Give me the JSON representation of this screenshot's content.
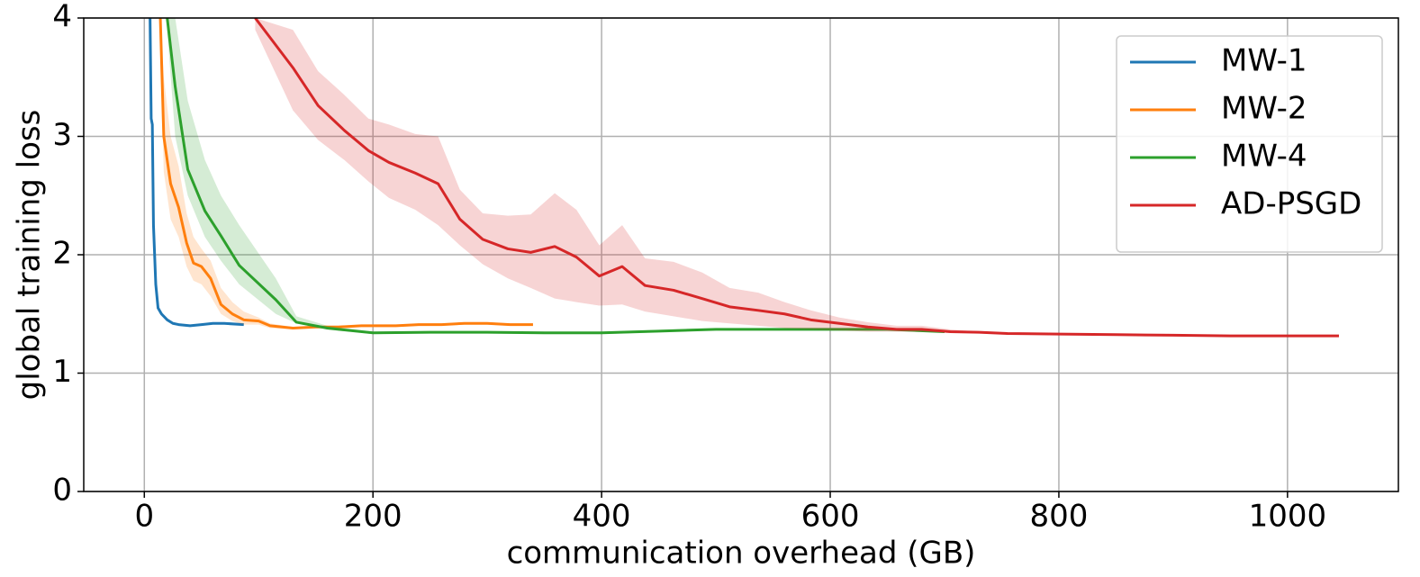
{
  "chart_data": {
    "type": "line",
    "x_label": "communication overhead (GB)",
    "y_label": "global training loss",
    "xlim": [
      -53,
      1097
    ],
    "ylim": [
      0,
      4
    ],
    "xticks": [
      0,
      200,
      400,
      600,
      800,
      1000
    ],
    "yticks": [
      0,
      1,
      2,
      3,
      4
    ],
    "grid": true,
    "legend": "upper right",
    "series": [
      {
        "name": "MW-1",
        "color": "#1f77b4",
        "x": [
          5,
          6,
          7,
          8,
          10,
          12,
          15,
          20,
          25,
          30,
          40,
          50,
          60,
          70,
          87
        ],
        "y": [
          4.0,
          3.15,
          3.1,
          2.25,
          1.75,
          1.55,
          1.5,
          1.45,
          1.42,
          1.41,
          1.4,
          1.41,
          1.42,
          1.42,
          1.41
        ]
      },
      {
        "name": "MW-2",
        "color": "#ff7f0e",
        "x": [
          14,
          17,
          23,
          30,
          37,
          43,
          50,
          58,
          67,
          77,
          87,
          100,
          110,
          130,
          150,
          170,
          190,
          220,
          240,
          260,
          280,
          300,
          320,
          340
        ],
        "y": [
          4.0,
          3.0,
          2.6,
          2.4,
          2.1,
          1.93,
          1.9,
          1.8,
          1.58,
          1.5,
          1.45,
          1.44,
          1.4,
          1.38,
          1.39,
          1.39,
          1.4,
          1.4,
          1.41,
          1.41,
          1.42,
          1.42,
          1.41,
          1.41
        ],
        "upper": [
          4.0,
          3.5,
          3.0,
          2.75,
          2.35,
          2.15,
          2.05,
          1.95,
          1.72,
          1.6,
          1.52,
          1.47,
          1.42,
          1.39,
          1.4,
          1.4,
          1.41,
          1.41,
          1.42,
          1.42,
          1.43,
          1.43,
          1.42,
          1.42
        ],
        "lower": [
          3.9,
          2.7,
          2.3,
          2.15,
          1.9,
          1.78,
          1.75,
          1.65,
          1.5,
          1.44,
          1.41,
          1.41,
          1.38,
          1.37,
          1.38,
          1.38,
          1.39,
          1.39,
          1.4,
          1.4,
          1.41,
          1.41,
          1.4,
          1.4
        ]
      },
      {
        "name": "MW-4",
        "color": "#2ca02c",
        "x": [
          20,
          27,
          38,
          53,
          67,
          83,
          115,
          133,
          160,
          200,
          250,
          300,
          350,
          400,
          450,
          500,
          550,
          600,
          650,
          700
        ],
        "y": [
          4.0,
          3.42,
          2.72,
          2.37,
          2.16,
          1.91,
          1.62,
          1.43,
          1.38,
          1.34,
          1.345,
          1.345,
          1.34,
          1.34,
          1.355,
          1.37,
          1.37,
          1.37,
          1.37,
          1.35
        ],
        "upper": [
          4.0,
          4.0,
          3.3,
          2.8,
          2.5,
          2.25,
          1.8,
          1.48,
          1.4,
          1.35,
          1.355,
          1.355,
          1.35,
          1.35,
          1.365,
          1.38,
          1.38,
          1.38,
          1.38,
          1.36
        ],
        "lower": [
          3.9,
          3.0,
          2.5,
          2.15,
          1.95,
          1.75,
          1.5,
          1.42,
          1.37,
          1.33,
          1.335,
          1.335,
          1.33,
          1.33,
          1.345,
          1.36,
          1.36,
          1.36,
          1.36,
          1.34
        ]
      },
      {
        "name": "AD-PSGD",
        "color": "#d62728",
        "x": [
          97,
          130,
          152,
          175,
          196,
          214,
          237,
          257,
          276,
          296,
          318,
          338,
          359,
          378,
          398,
          418,
          438,
          463,
          488,
          512,
          537,
          560,
          583,
          608,
          633,
          658,
          680,
          705,
          730,
          755,
          800,
          850,
          900,
          950,
          1000,
          1045
        ],
        "y": [
          4.0,
          3.58,
          3.26,
          3.05,
          2.88,
          2.78,
          2.69,
          2.6,
          2.3,
          2.13,
          2.05,
          2.02,
          2.07,
          1.98,
          1.82,
          1.9,
          1.74,
          1.7,
          1.63,
          1.56,
          1.53,
          1.5,
          1.45,
          1.42,
          1.39,
          1.37,
          1.37,
          1.35,
          1.345,
          1.335,
          1.33,
          1.325,
          1.32,
          1.315,
          1.315,
          1.315
        ],
        "upper": [
          4.0,
          3.9,
          3.55,
          3.35,
          3.15,
          3.1,
          3.02,
          3.0,
          2.55,
          2.35,
          2.33,
          2.34,
          2.52,
          2.38,
          2.08,
          2.25,
          1.97,
          1.94,
          1.85,
          1.72,
          1.68,
          1.6,
          1.53,
          1.47,
          1.43,
          1.4,
          1.4,
          1.37,
          1.35,
          1.34,
          1.335,
          1.33,
          1.325,
          1.32,
          1.32,
          1.32
        ],
        "lower": [
          3.9,
          3.22,
          2.97,
          2.8,
          2.62,
          2.48,
          2.38,
          2.25,
          2.08,
          1.92,
          1.8,
          1.72,
          1.63,
          1.6,
          1.57,
          1.58,
          1.52,
          1.48,
          1.44,
          1.42,
          1.4,
          1.38,
          1.37,
          1.36,
          1.35,
          1.35,
          1.35,
          1.34,
          1.34,
          1.33,
          1.325,
          1.32,
          1.315,
          1.31,
          1.31,
          1.31
        ]
      }
    ]
  }
}
